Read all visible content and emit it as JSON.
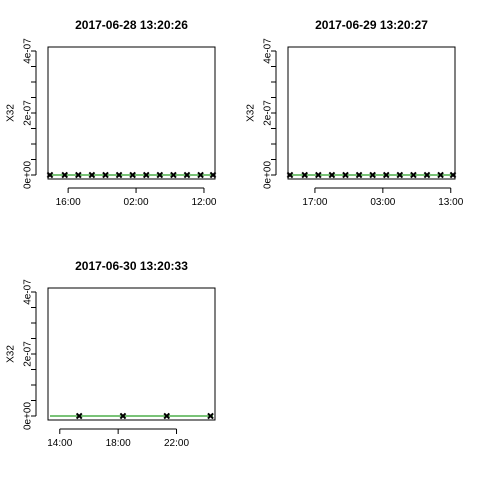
{
  "chart_data": [
    {
      "type": "line",
      "title": "2017-06-28 13:20:26",
      "ylabel": "X32",
      "xlabel": "",
      "ylim": [
        0,
        4e-07
      ],
      "yticks": [
        {
          "value": 0,
          "label": "0e+00"
        },
        {
          "value": 2e-07,
          "label": "2e-07"
        },
        {
          "value": 4e-07,
          "label": "4e-07"
        }
      ],
      "x_unit": "hours since 2017-06-28 00:00",
      "xlim": [
        13.33,
        37.33
      ],
      "xticks": [
        {
          "value": 16,
          "label": "16:00"
        },
        {
          "value": 26,
          "label": "02:00"
        },
        {
          "value": 36,
          "label": "12:00"
        }
      ],
      "series": [
        {
          "name": "",
          "style": "line",
          "color": "#4daf4a",
          "x": [
            13.33,
            37.33
          ],
          "y": [
            0,
            0
          ]
        },
        {
          "name": "",
          "style": "points",
          "marker": "x",
          "color": "#000000",
          "x": [
            13.33,
            15.5,
            17.5,
            19.5,
            21.5,
            23.5,
            25.5,
            27.5,
            29.5,
            31.5,
            33.5,
            35.5,
            37.33
          ],
          "y": [
            0,
            0,
            0,
            0,
            0,
            0,
            0,
            0,
            0,
            0,
            0,
            0,
            0
          ]
        }
      ],
      "grid": false
    },
    {
      "type": "line",
      "title": "2017-06-29 13:20:27",
      "ylabel": "X32",
      "xlabel": "",
      "ylim": [
        0,
        4e-07
      ],
      "yticks": [
        {
          "value": 0,
          "label": "0e+00"
        },
        {
          "value": 2e-07,
          "label": "2e-07"
        },
        {
          "value": 4e-07,
          "label": "4e-07"
        }
      ],
      "x_unit": "hours since 2017-06-29 00:00",
      "xlim": [
        13.33,
        37.33
      ],
      "xticks": [
        {
          "value": 17,
          "label": "17:00"
        },
        {
          "value": 27,
          "label": "03:00"
        },
        {
          "value": 37,
          "label": "13:00"
        }
      ],
      "series": [
        {
          "name": "",
          "style": "line",
          "color": "#4daf4a",
          "x": [
            13.33,
            37.33
          ],
          "y": [
            0,
            0
          ]
        },
        {
          "name": "",
          "style": "points",
          "marker": "x",
          "color": "#000000",
          "x": [
            13.33,
            15.5,
            17.5,
            19.5,
            21.5,
            23.5,
            25.5,
            27.5,
            29.5,
            31.5,
            33.5,
            35.5,
            37.33
          ],
          "y": [
            0,
            0,
            0,
            0,
            0,
            0,
            0,
            0,
            0,
            0,
            0,
            0,
            0
          ]
        }
      ],
      "grid": false
    },
    {
      "type": "line",
      "title": "2017-06-30 13:20:33",
      "ylabel": "X32",
      "xlabel": "",
      "ylim": [
        0,
        4e-07
      ],
      "yticks": [
        {
          "value": 0,
          "label": "0e+00"
        },
        {
          "value": 2e-07,
          "label": "2e-07"
        },
        {
          "value": 4e-07,
          "label": "4e-07"
        }
      ],
      "x_unit": "hours since 2017-06-30 00:00",
      "xlim": [
        13.33,
        24.5
      ],
      "xticks": [
        {
          "value": 14,
          "label": "14:00"
        },
        {
          "value": 18,
          "label": "18:00"
        },
        {
          "value": 22,
          "label": "22:00"
        }
      ],
      "series": [
        {
          "name": "",
          "style": "line",
          "color": "#4daf4a",
          "x": [
            13.33,
            24.5
          ],
          "y": [
            0,
            0
          ]
        },
        {
          "name": "",
          "style": "points",
          "marker": "x",
          "color": "#000000",
          "x": [
            15.33,
            18.33,
            21.33,
            24.33
          ],
          "y": [
            0,
            0,
            0,
            0
          ]
        }
      ],
      "grid": false
    }
  ]
}
